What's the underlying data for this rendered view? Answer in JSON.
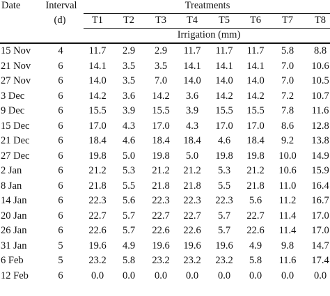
{
  "header": {
    "date_label": "Date",
    "interval_label": "Interval",
    "interval_unit": "(d)",
    "treatments_label": "Treatments",
    "treatment_columns": [
      "T1",
      "T2",
      "T3",
      "T4",
      "T5",
      "T6",
      "T7",
      "T8"
    ],
    "irrigation_label": "Irrigation (mm)"
  },
  "rows": [
    {
      "date": "15 Nov",
      "interval": "4",
      "values": [
        "11.7",
        "2.9",
        "2.9",
        "11.7",
        "11.7",
        "11.7",
        "5.8",
        "8.8"
      ]
    },
    {
      "date": "21 Nov",
      "interval": "6",
      "values": [
        "14.1",
        "3.5",
        "3.5",
        "14.1",
        "14.1",
        "14.1",
        "7.0",
        "10.6"
      ]
    },
    {
      "date": "27 Nov",
      "interval": "6",
      "values": [
        "14.0",
        "3.5",
        "7.0",
        "14.0",
        "14.0",
        "14.0",
        "7.0",
        "10.5"
      ]
    },
    {
      "date": "3 Dec",
      "interval": "6",
      "values": [
        "14.2",
        "3.6",
        "14.2",
        "3.6",
        "14.2",
        "14.2",
        "7.2",
        "10.7"
      ]
    },
    {
      "date": "9 Dec",
      "interval": "6",
      "values": [
        "15.5",
        "3.9",
        "15.5",
        "3.9",
        "15.5",
        "15.5",
        "7.8",
        "11.6"
      ]
    },
    {
      "date": "15 Dec",
      "interval": "6",
      "values": [
        "17.0",
        "4.3",
        "17.0",
        "4.3",
        "17.0",
        "17.0",
        "8.6",
        "12.8"
      ]
    },
    {
      "date": "21 Dec",
      "interval": "6",
      "values": [
        "18.4",
        "4.6",
        "18.4",
        "18.4",
        "4.6",
        "18.4",
        "9.2",
        "13.8"
      ]
    },
    {
      "date": "27 Dec",
      "interval": "6",
      "values": [
        "19.8",
        "5.0",
        "19.8",
        "5.0",
        "19.8",
        "19.8",
        "10.0",
        "14.9"
      ]
    },
    {
      "date": "2 Jan",
      "interval": "6",
      "values": [
        "21.2",
        "5.3",
        "21.2",
        "21.2",
        "5.3",
        "21.2",
        "10.6",
        "15.9"
      ]
    },
    {
      "date": "8 Jan",
      "interval": "6",
      "values": [
        "21.8",
        "5.5",
        "21.8",
        "21.8",
        "5.5",
        "21.8",
        "11.0",
        "16.4"
      ]
    },
    {
      "date": "14 Jan",
      "interval": "6",
      "values": [
        "22.3",
        "5.6",
        "22.3",
        "22.3",
        "22.3",
        "5.6",
        "11.2",
        "16.7"
      ]
    },
    {
      "date": "20 Jan",
      "interval": "6",
      "values": [
        "22.7",
        "5.7",
        "22.7",
        "22.7",
        "5.7",
        "22.7",
        "11.4",
        "17.0"
      ]
    },
    {
      "date": "26 Jan",
      "interval": "6",
      "values": [
        "22.6",
        "5.7",
        "22.6",
        "22.6",
        "5.7",
        "22.6",
        "11.4",
        "17.0"
      ]
    },
    {
      "date": "31 Jan",
      "interval": "5",
      "values": [
        "19.6",
        "4.9",
        "19.6",
        "19.6",
        "19.6",
        "4.9",
        "9.8",
        "14.7"
      ]
    },
    {
      "date": "6 Feb",
      "interval": "5",
      "values": [
        "23.2",
        "5.8",
        "23.2",
        "23.2",
        "23.2",
        "5.8",
        "11.6",
        "17.4"
      ]
    },
    {
      "date": "12 Feb",
      "interval": "6",
      "values": [
        "0.0",
        "0.0",
        "0.0",
        "0.0",
        "0.0",
        "0.0",
        "0.0",
        "0.0"
      ]
    }
  ]
}
